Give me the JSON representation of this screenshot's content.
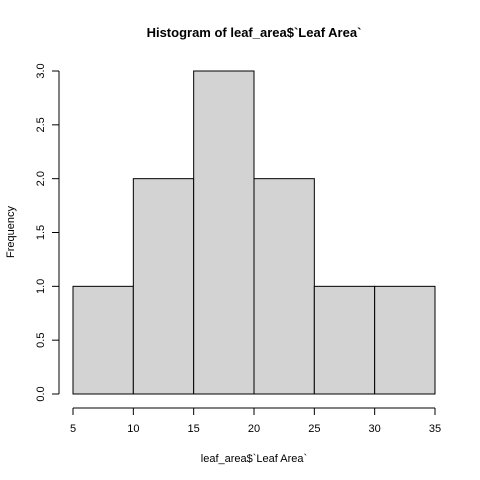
{
  "chart_data": {
    "type": "bar",
    "title": "Histogram of leaf_area$`Leaf Area`",
    "xlabel": "leaf_area$`Leaf Area`",
    "ylabel": "Frequency",
    "bins": [
      {
        "start": 5,
        "end": 10,
        "count": 1
      },
      {
        "start": 10,
        "end": 15,
        "count": 2
      },
      {
        "start": 15,
        "end": 20,
        "count": 3
      },
      {
        "start": 20,
        "end": 25,
        "count": 2
      },
      {
        "start": 25,
        "end": 30,
        "count": 1
      },
      {
        "start": 30,
        "end": 35,
        "count": 1
      }
    ],
    "xlim": [
      5,
      35
    ],
    "ylim": [
      0,
      3
    ],
    "xticks": [
      "5",
      "10",
      "15",
      "20",
      "25",
      "30",
      "35"
    ],
    "yticks": [
      "0.0",
      "0.5",
      "1.0",
      "1.5",
      "2.0",
      "2.5",
      "3.0"
    ],
    "grid": false,
    "bar_color": "#d3d3d3",
    "border_color": "#000000"
  }
}
